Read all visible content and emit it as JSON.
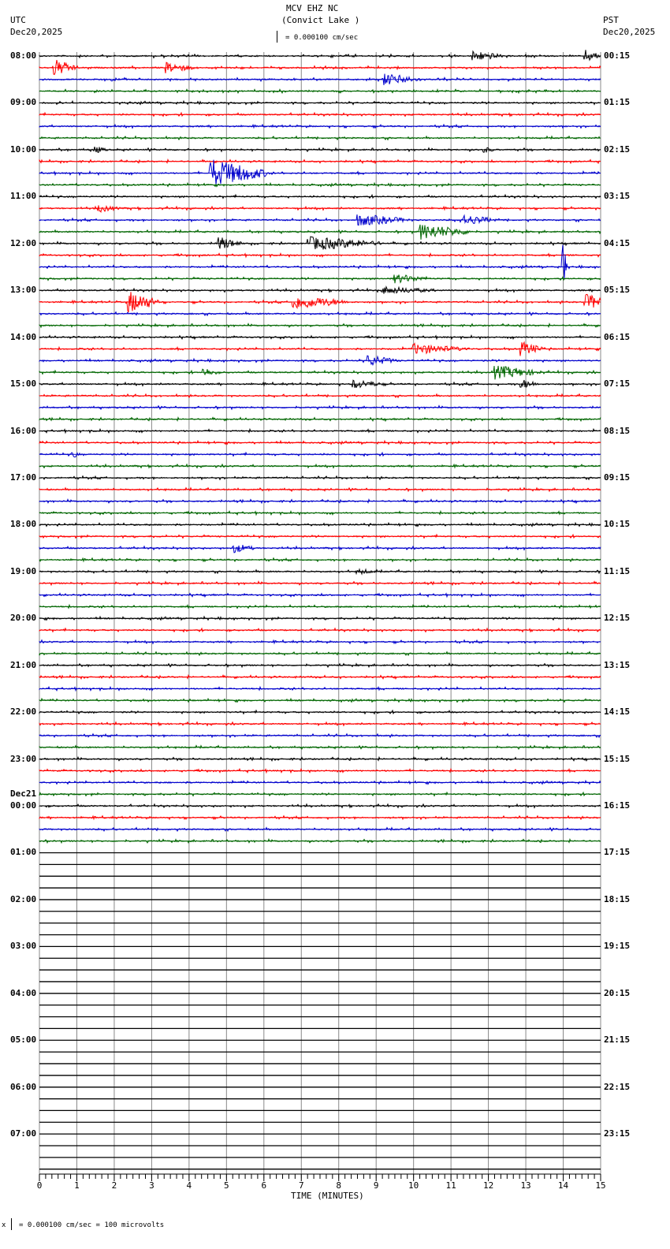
{
  "header": {
    "station": "MCV EHZ NC",
    "location": "(Convict Lake )",
    "scale_label": "= 0.000100 cm/sec",
    "left_tz": "UTC",
    "left_date": "Dec20,2025",
    "right_tz": "PST",
    "right_date": "Dec20,2025"
  },
  "footer": {
    "axis_title": "TIME (MINUTES)",
    "scale_note": "= 0.000100 cm/sec =     100 microvolts",
    "scale_prefix": "x"
  },
  "colors": {
    "trace_cycle": [
      "#000000",
      "#ff0000",
      "#0000cc",
      "#006600"
    ],
    "grid": "#888888",
    "empty_trace": "#000000"
  },
  "chart_data": {
    "type": "line",
    "title": "MCV EHZ NC (Convict Lake ) helicorder",
    "xlabel": "TIME (MINUTES)",
    "ylabel": "",
    "x_ticks": [
      0,
      1,
      2,
      3,
      4,
      5,
      6,
      7,
      8,
      9,
      10,
      11,
      12,
      13,
      14,
      15
    ],
    "xlim": [
      0,
      15
    ],
    "rows_total": 96,
    "rows_with_data": 68,
    "minutes_per_row": 15,
    "left_hour_labels": [
      {
        "row": 0,
        "label": "08:00"
      },
      {
        "row": 4,
        "label": "09:00"
      },
      {
        "row": 8,
        "label": "10:00"
      },
      {
        "row": 12,
        "label": "11:00"
      },
      {
        "row": 16,
        "label": "12:00"
      },
      {
        "row": 20,
        "label": "13:00"
      },
      {
        "row": 24,
        "label": "14:00"
      },
      {
        "row": 28,
        "label": "15:00"
      },
      {
        "row": 32,
        "label": "16:00"
      },
      {
        "row": 36,
        "label": "17:00"
      },
      {
        "row": 40,
        "label": "18:00"
      },
      {
        "row": 44,
        "label": "19:00"
      },
      {
        "row": 48,
        "label": "20:00"
      },
      {
        "row": 52,
        "label": "21:00"
      },
      {
        "row": 56,
        "label": "22:00"
      },
      {
        "row": 60,
        "label": "23:00"
      },
      {
        "row": 64,
        "label": "00:00",
        "date": "Dec21"
      },
      {
        "row": 68,
        "label": "01:00"
      },
      {
        "row": 72,
        "label": "02:00"
      },
      {
        "row": 76,
        "label": "03:00"
      },
      {
        "row": 80,
        "label": "04:00"
      },
      {
        "row": 84,
        "label": "05:00"
      },
      {
        "row": 88,
        "label": "06:00"
      },
      {
        "row": 92,
        "label": "07:00"
      }
    ],
    "right_hour_labels": [
      {
        "row": 0,
        "label": "00:15"
      },
      {
        "row": 4,
        "label": "01:15"
      },
      {
        "row": 8,
        "label": "02:15"
      },
      {
        "row": 12,
        "label": "03:15"
      },
      {
        "row": 16,
        "label": "04:15"
      },
      {
        "row": 20,
        "label": "05:15"
      },
      {
        "row": 24,
        "label": "06:15"
      },
      {
        "row": 28,
        "label": "07:15"
      },
      {
        "row": 32,
        "label": "08:15"
      },
      {
        "row": 36,
        "label": "09:15"
      },
      {
        "row": 40,
        "label": "10:15"
      },
      {
        "row": 44,
        "label": "11:15"
      },
      {
        "row": 48,
        "label": "12:15"
      },
      {
        "row": 52,
        "label": "13:15"
      },
      {
        "row": 56,
        "label": "14:15"
      },
      {
        "row": 60,
        "label": "15:15"
      },
      {
        "row": 64,
        "label": "16:15"
      },
      {
        "row": 68,
        "label": "17:15"
      },
      {
        "row": 72,
        "label": "18:15"
      },
      {
        "row": 76,
        "label": "19:15"
      },
      {
        "row": 80,
        "label": "20:15"
      },
      {
        "row": 84,
        "label": "21:15"
      },
      {
        "row": 88,
        "label": "22:15"
      },
      {
        "row": 92,
        "label": "23:15"
      }
    ],
    "events": [
      {
        "row": 0,
        "minute": 11.6,
        "amp": 7,
        "dur": 0.8
      },
      {
        "row": 0,
        "minute": 14.6,
        "amp": 8,
        "dur": 0.4
      },
      {
        "row": 1,
        "minute": 0.4,
        "amp": 11,
        "dur": 0.6
      },
      {
        "row": 1,
        "minute": 3.4,
        "amp": 7,
        "dur": 0.8
      },
      {
        "row": 2,
        "minute": 9.2,
        "amp": 8,
        "dur": 1.0
      },
      {
        "row": 8,
        "minute": 1.5,
        "amp": 5,
        "dur": 0.3
      },
      {
        "row": 8,
        "minute": 11.9,
        "amp": 4,
        "dur": 0.3
      },
      {
        "row": 10,
        "minute": 4.6,
        "amp": 18,
        "dur": 1.5
      },
      {
        "row": 13,
        "minute": 1.6,
        "amp": 5,
        "dur": 0.6
      },
      {
        "row": 14,
        "minute": 8.5,
        "amp": 8,
        "dur": 1.4
      },
      {
        "row": 14,
        "minute": 11.3,
        "amp": 7,
        "dur": 1.0
      },
      {
        "row": 15,
        "minute": 10.2,
        "amp": 10,
        "dur": 1.4
      },
      {
        "row": 16,
        "minute": 4.8,
        "amp": 9,
        "dur": 0.6
      },
      {
        "row": 16,
        "minute": 7.2,
        "amp": 9,
        "dur": 2.0
      },
      {
        "row": 18,
        "minute": 14.0,
        "amp": 28,
        "dur": 0.1
      },
      {
        "row": 19,
        "minute": 9.5,
        "amp": 6,
        "dur": 1.0
      },
      {
        "row": 20,
        "minute": 9.2,
        "amp": 5,
        "dur": 1.5
      },
      {
        "row": 21,
        "minute": 2.4,
        "amp": 14,
        "dur": 0.8
      },
      {
        "row": 21,
        "minute": 6.8,
        "amp": 9,
        "dur": 1.5
      },
      {
        "row": 21,
        "minute": 14.6,
        "amp": 10,
        "dur": 0.8
      },
      {
        "row": 25,
        "minute": 10.0,
        "amp": 7,
        "dur": 1.5
      },
      {
        "row": 25,
        "minute": 12.9,
        "amp": 9,
        "dur": 0.6
      },
      {
        "row": 26,
        "minute": 8.8,
        "amp": 7,
        "dur": 0.8
      },
      {
        "row": 27,
        "minute": 4.4,
        "amp": 6,
        "dur": 0.4
      },
      {
        "row": 27,
        "minute": 12.2,
        "amp": 9,
        "dur": 1.2
      },
      {
        "row": 28,
        "minute": 8.4,
        "amp": 6,
        "dur": 0.8
      },
      {
        "row": 28,
        "minute": 12.9,
        "amp": 6,
        "dur": 0.5
      },
      {
        "row": 34,
        "minute": 0.9,
        "amp": 5,
        "dur": 0.2
      },
      {
        "row": 42,
        "minute": 5.2,
        "amp": 6,
        "dur": 0.6
      },
      {
        "row": 44,
        "minute": 8.5,
        "amp": 4,
        "dur": 0.6
      }
    ]
  }
}
